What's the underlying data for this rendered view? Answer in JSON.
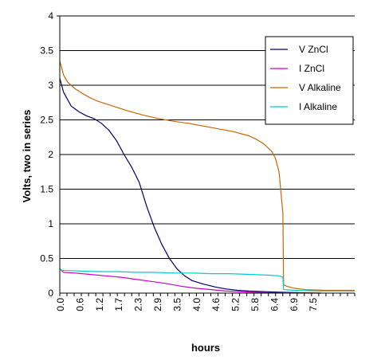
{
  "chart_data": {
    "type": "line",
    "title": "",
    "xlabel": "hours",
    "ylabel": "Volts,  two in series",
    "xlim": [
      0,
      7.8
    ],
    "ylim": [
      0,
      4
    ],
    "y_ticks": [
      "0",
      "0.5",
      "1",
      "1.5",
      "2",
      "2.5",
      "3",
      "3.5",
      "4"
    ],
    "x_ticks": [
      "0.0",
      "0.6",
      "1.2",
      "1.7",
      "2.3",
      "2.9",
      "3.5",
      "4.0",
      "4.6",
      "5.2",
      "5.8",
      "6.4",
      "6.9",
      "7.5"
    ],
    "grid": "horizontal major",
    "legend_position": "top-right",
    "series": [
      {
        "name": "V ZnCl",
        "color": "#000066",
        "points": [
          [
            0,
            3.1
          ],
          [
            0.05,
            3.0
          ],
          [
            0.1,
            2.9
          ],
          [
            0.2,
            2.8
          ],
          [
            0.3,
            2.7
          ],
          [
            0.5,
            2.62
          ],
          [
            0.7,
            2.56
          ],
          [
            0.9,
            2.52
          ],
          [
            1.1,
            2.45
          ],
          [
            1.3,
            2.35
          ],
          [
            1.5,
            2.2
          ],
          [
            1.7,
            2.0
          ],
          [
            1.9,
            1.82
          ],
          [
            2.1,
            1.6
          ],
          [
            2.3,
            1.25
          ],
          [
            2.5,
            0.95
          ],
          [
            2.7,
            0.7
          ],
          [
            2.9,
            0.5
          ],
          [
            3.1,
            0.35
          ],
          [
            3.3,
            0.25
          ],
          [
            3.5,
            0.18
          ],
          [
            3.8,
            0.13
          ],
          [
            4.1,
            0.09
          ],
          [
            4.4,
            0.06
          ],
          [
            4.7,
            0.04
          ],
          [
            5.0,
            0.03
          ],
          [
            5.5,
            0.02
          ],
          [
            6.0,
            0.01
          ],
          [
            6.9,
            0.0
          ]
        ]
      },
      {
        "name": "I ZnCl",
        "color": "#CC00CC",
        "points": [
          [
            0,
            0.35
          ],
          [
            0.1,
            0.3
          ],
          [
            0.4,
            0.29
          ],
          [
            0.8,
            0.27
          ],
          [
            1.2,
            0.25
          ],
          [
            1.6,
            0.23
          ],
          [
            2.0,
            0.2
          ],
          [
            2.4,
            0.17
          ],
          [
            2.8,
            0.14
          ],
          [
            3.2,
            0.1
          ],
          [
            3.6,
            0.07
          ],
          [
            4.0,
            0.05
          ],
          [
            4.4,
            0.03
          ],
          [
            4.8,
            0.02
          ],
          [
            5.2,
            0.01
          ],
          [
            5.6,
            0.005
          ],
          [
            6.9,
            0.0
          ]
        ]
      },
      {
        "name": "V Alkaline",
        "color": "#CC6600",
        "points": [
          [
            0,
            3.35
          ],
          [
            0.05,
            3.25
          ],
          [
            0.1,
            3.15
          ],
          [
            0.2,
            3.05
          ],
          [
            0.4,
            2.95
          ],
          [
            0.6,
            2.88
          ],
          [
            0.8,
            2.82
          ],
          [
            1.0,
            2.77
          ],
          [
            1.4,
            2.7
          ],
          [
            1.8,
            2.63
          ],
          [
            2.2,
            2.57
          ],
          [
            2.6,
            2.52
          ],
          [
            3.0,
            2.48
          ],
          [
            3.4,
            2.45
          ],
          [
            3.8,
            2.41
          ],
          [
            4.2,
            2.37
          ],
          [
            4.6,
            2.33
          ],
          [
            5.0,
            2.27
          ],
          [
            5.2,
            2.22
          ],
          [
            5.4,
            2.15
          ],
          [
            5.6,
            2.05
          ],
          [
            5.7,
            1.95
          ],
          [
            5.8,
            1.75
          ],
          [
            5.85,
            1.45
          ],
          [
            5.9,
            1.15
          ],
          [
            5.92,
            0.12
          ],
          [
            6.0,
            0.1
          ],
          [
            6.2,
            0.07
          ],
          [
            6.5,
            0.05
          ],
          [
            7.0,
            0.04
          ],
          [
            7.8,
            0.04
          ]
        ]
      },
      {
        "name": "I Alkaline",
        "color": "#00CCCC",
        "points": [
          [
            0,
            0.35
          ],
          [
            0.05,
            0.33
          ],
          [
            0.5,
            0.32
          ],
          [
            1.0,
            0.31
          ],
          [
            1.5,
            0.31
          ],
          [
            2.0,
            0.3
          ],
          [
            2.5,
            0.3
          ],
          [
            3.0,
            0.29
          ],
          [
            3.5,
            0.29
          ],
          [
            4.0,
            0.28
          ],
          [
            4.5,
            0.28
          ],
          [
            5.0,
            0.27
          ],
          [
            5.5,
            0.26
          ],
          [
            5.8,
            0.25
          ],
          [
            5.9,
            0.23
          ],
          [
            5.92,
            0.05
          ],
          [
            6.2,
            0.04
          ],
          [
            6.8,
            0.03
          ],
          [
            7.8,
            0.03
          ]
        ]
      }
    ]
  }
}
